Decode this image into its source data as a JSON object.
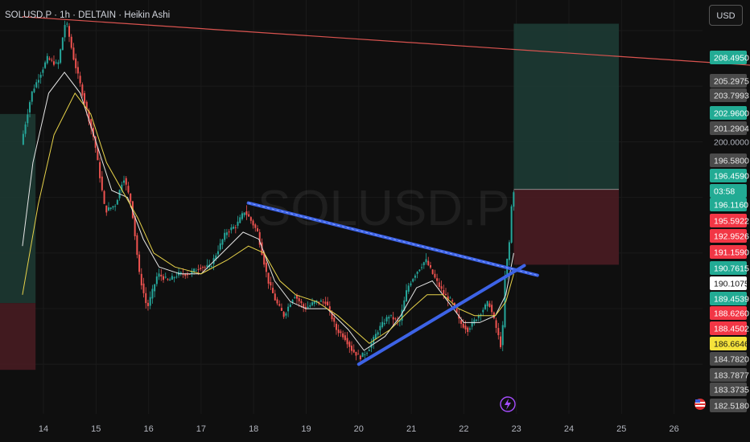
{
  "header": {
    "title": "SOLUSD.P · 1h · DELTAIN · Heikin Ashi",
    "currency": "USD"
  },
  "watermark": "SOLUSD.P",
  "colors": {
    "background": "#0f0f0f",
    "bull": "#26a69a",
    "bear": "#ef5350",
    "ma_fast": "#e6e6e6",
    "ma_slow": "#e8d34a",
    "pattern_lines": "#3d63e6",
    "resistance_line": "#d9534f",
    "target_zone": "#1d3b34",
    "stop_zone": "#4a1c22",
    "alert": "#a64dff"
  },
  "chart_data": {
    "type": "candlestick",
    "ylim": [
      181.9,
      210.2
    ],
    "x_labels": [
      "14",
      "15",
      "16",
      "17",
      "18",
      "19",
      "20",
      "21",
      "22",
      "23",
      "24",
      "25",
      "26"
    ],
    "price_labels": [
      {
        "value": "208.4950",
        "kind": "green"
      },
      {
        "value": "205.2975",
        "kind": "gray"
      },
      {
        "value": "203.7993",
        "kind": "gray"
      },
      {
        "value": "202.9600",
        "kind": "green"
      },
      {
        "value": "201.2904",
        "kind": "gray"
      },
      {
        "value": "200.0000",
        "kind": "plain"
      },
      {
        "value": "196.5800",
        "kind": "gray"
      },
      {
        "value": "196.4590",
        "kind": "green"
      },
      {
        "value": "03:58",
        "kind": "green"
      },
      {
        "value": "196.1160",
        "kind": "green"
      },
      {
        "value": "195.5922",
        "kind": "red"
      },
      {
        "value": "192.9526",
        "kind": "red"
      },
      {
        "value": "191.1590",
        "kind": "red"
      },
      {
        "value": "190.7615",
        "kind": "green"
      },
      {
        "value": "190.1075",
        "kind": "white"
      },
      {
        "value": "189.4539",
        "kind": "green"
      },
      {
        "value": "188.6260",
        "kind": "red"
      },
      {
        "value": "188.4502",
        "kind": "red"
      },
      {
        "value": "186.6646",
        "kind": "yellow"
      },
      {
        "value": "184.7820",
        "kind": "gray"
      },
      {
        "value": "183.7877",
        "kind": "gray"
      },
      {
        "value": "183.3735",
        "kind": "gray"
      },
      {
        "value": "182.5180",
        "kind": "gray"
      }
    ],
    "price_path": [
      [
        13.6,
        199.8
      ],
      [
        13.8,
        203.5
      ],
      [
        14.1,
        206.0
      ],
      [
        14.3,
        205.5
      ],
      [
        14.45,
        208.8
      ],
      [
        14.6,
        206.0
      ],
      [
        14.8,
        203.0
      ],
      [
        15.0,
        200.0
      ],
      [
        15.2,
        195.0
      ],
      [
        15.4,
        195.5
      ],
      [
        15.55,
        197.5
      ],
      [
        15.7,
        195.5
      ],
      [
        15.85,
        190.5
      ],
      [
        16.0,
        188.0
      ],
      [
        16.2,
        190.5
      ],
      [
        16.4,
        190.0
      ],
      [
        16.6,
        190.5
      ],
      [
        16.8,
        190.5
      ],
      [
        17.0,
        191.0
      ],
      [
        17.2,
        191.0
      ],
      [
        17.5,
        193.5
      ],
      [
        17.7,
        194.0
      ],
      [
        17.85,
        195.0
      ],
      [
        17.95,
        194.5
      ],
      [
        18.1,
        193.5
      ],
      [
        18.3,
        190.0
      ],
      [
        18.45,
        188.5
      ],
      [
        18.6,
        187.5
      ],
      [
        18.8,
        189.0
      ],
      [
        19.0,
        188.0
      ],
      [
        19.2,
        188.5
      ],
      [
        19.4,
        188.5
      ],
      [
        19.6,
        186.5
      ],
      [
        19.75,
        186.0
      ],
      [
        19.9,
        185.0
      ],
      [
        20.05,
        184.5
      ],
      [
        20.2,
        185.0
      ],
      [
        20.4,
        186.5
      ],
      [
        20.6,
        187.5
      ],
      [
        20.8,
        187.0
      ],
      [
        20.95,
        189.5
      ],
      [
        21.1,
        190.5
      ],
      [
        21.3,
        191.5
      ],
      [
        21.5,
        190.0
      ],
      [
        21.65,
        189.0
      ],
      [
        21.8,
        188.5
      ],
      [
        21.95,
        187.0
      ],
      [
        22.1,
        186.5
      ],
      [
        22.3,
        187.5
      ],
      [
        22.5,
        188.5
      ],
      [
        22.65,
        186.5
      ],
      [
        22.75,
        185.0
      ],
      [
        22.8,
        190.0
      ],
      [
        22.9,
        193.0
      ],
      [
        22.95,
        196.5
      ]
    ],
    "moving_averages": [
      {
        "name": "fast",
        "values": [
          [
            13.6,
            192.5
          ],
          [
            13.8,
            198.5
          ],
          [
            14.1,
            203.5
          ],
          [
            14.4,
            205.0
          ],
          [
            14.7,
            203.5
          ],
          [
            15.0,
            200.0
          ],
          [
            15.3,
            196.5
          ],
          [
            15.6,
            196.0
          ],
          [
            15.9,
            193.0
          ],
          [
            16.2,
            191.0
          ],
          [
            16.6,
            190.5
          ],
          [
            17.0,
            190.5
          ],
          [
            17.4,
            192.0
          ],
          [
            17.8,
            193.5
          ],
          [
            18.1,
            193.0
          ],
          [
            18.4,
            190.0
          ],
          [
            18.7,
            188.5
          ],
          [
            19.0,
            188.0
          ],
          [
            19.4,
            188.0
          ],
          [
            19.8,
            186.5
          ],
          [
            20.1,
            185.0
          ],
          [
            20.5,
            186.0
          ],
          [
            20.8,
            187.5
          ],
          [
            21.1,
            189.5
          ],
          [
            21.4,
            190.0
          ],
          [
            21.7,
            188.5
          ],
          [
            22.0,
            187.0
          ],
          [
            22.3,
            187.0
          ],
          [
            22.6,
            187.5
          ],
          [
            22.8,
            189.0
          ],
          [
            22.95,
            192.0
          ]
        ]
      },
      {
        "name": "slow",
        "values": [
          [
            13.6,
            189.0
          ],
          [
            13.9,
            195.5
          ],
          [
            14.2,
            200.5
          ],
          [
            14.6,
            203.5
          ],
          [
            14.9,
            202.0
          ],
          [
            15.2,
            198.5
          ],
          [
            15.5,
            196.5
          ],
          [
            15.8,
            194.5
          ],
          [
            16.1,
            192.0
          ],
          [
            16.5,
            191.0
          ],
          [
            17.0,
            190.5
          ],
          [
            17.5,
            191.5
          ],
          [
            17.9,
            192.5
          ],
          [
            18.2,
            192.0
          ],
          [
            18.5,
            190.0
          ],
          [
            18.8,
            189.0
          ],
          [
            19.2,
            188.5
          ],
          [
            19.6,
            187.5
          ],
          [
            19.9,
            186.5
          ],
          [
            20.2,
            185.5
          ],
          [
            20.6,
            186.5
          ],
          [
            21.0,
            188.0
          ],
          [
            21.3,
            189.0
          ],
          [
            21.6,
            189.0
          ],
          [
            21.9,
            188.0
          ],
          [
            22.2,
            187.5
          ],
          [
            22.6,
            187.5
          ],
          [
            22.8,
            188.5
          ],
          [
            22.95,
            190.5
          ]
        ]
      }
    ],
    "trendlines": [
      {
        "name": "upper",
        "x1": 17.9,
        "y1": 195.6,
        "x2": 23.4,
        "y2": 190.4
      },
      {
        "name": "lower",
        "x1": 20.0,
        "y1": 184.0,
        "x2": 23.15,
        "y2": 191.1
      },
      {
        "name": "resistance",
        "x1": 13.6,
        "y1": 209.0,
        "x2": 27.5,
        "y2": 205.5
      }
    ],
    "position": {
      "x_start": 22.95,
      "x_end": 24.95,
      "entry": 196.58,
      "target": 208.495,
      "stop": 191.159
    },
    "left_zones": [
      {
        "type": "target",
        "x_end": 13.85,
        "top": 202.0,
        "bottom": 188.4
      },
      {
        "type": "stop",
        "x_end": 13.85,
        "top": 188.4,
        "bottom": 183.6
      }
    ]
  }
}
